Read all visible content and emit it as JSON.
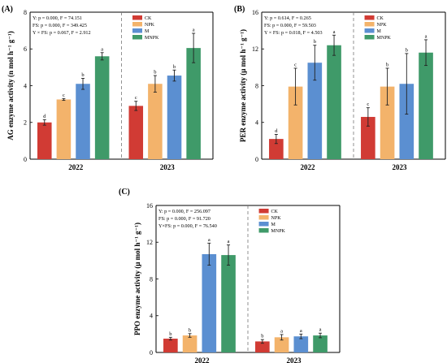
{
  "colors": {
    "CK": "#d13b34",
    "NPK": "#f3b36b",
    "M": "#5b8fd1",
    "MNPK": "#3f9a69"
  },
  "chart_data": [
    {
      "type": "bar",
      "panel": "(A)",
      "ylabel": "AG enzyme activity (n mol h⁻¹ g⁻¹)",
      "ylim": [
        0,
        8
      ],
      "yticks": [
        0,
        2,
        4,
        6,
        8
      ],
      "categories": [
        "2022",
        "2023"
      ],
      "legend": [
        "CK",
        "NPK",
        "M",
        "MNPK"
      ],
      "legend_position": "top-right",
      "stats": [
        "Y: p = 0.000, F = 74.151",
        "FS: p = 0.000, F = 349.425",
        "Y × FS: p = 0.067, F = 2.912"
      ],
      "series": [
        {
          "name": "CK",
          "values": [
            2.0,
            2.9
          ],
          "errors": [
            0.15,
            0.25
          ],
          "letters": [
            "d",
            "c"
          ]
        },
        {
          "name": "NPK",
          "values": [
            3.25,
            4.1
          ],
          "errors": [
            0.05,
            0.45
          ],
          "letters": [
            "c",
            "b"
          ]
        },
        {
          "name": "M",
          "values": [
            4.1,
            4.55
          ],
          "errors": [
            0.3,
            0.3
          ],
          "letters": [
            "b",
            "b"
          ]
        },
        {
          "name": "MNPK",
          "values": [
            5.6,
            6.05
          ],
          "errors": [
            0.2,
            0.8
          ],
          "letters": [
            "a",
            "a"
          ]
        }
      ]
    },
    {
      "type": "bar",
      "panel": "(B)",
      "ylabel": "PER enzyme activity (μ mol h⁻¹ g⁻¹)",
      "ylim": [
        0,
        16
      ],
      "yticks": [
        0,
        4,
        8,
        12,
        16
      ],
      "categories": [
        "2022",
        "2023"
      ],
      "legend": [
        "CK",
        "NPK",
        "M",
        "MNPK"
      ],
      "legend_position": "top-right",
      "stats": [
        "Y: p = 0.614, F = 0.265",
        "FS: p = 0.000, F = 59.503",
        "Y × FS: p = 0.018, F = 4.503"
      ],
      "series": [
        {
          "name": "CK",
          "values": [
            2.2,
            4.6
          ],
          "errors": [
            0.5,
            1.0
          ],
          "letters": [
            "d",
            "c"
          ]
        },
        {
          "name": "NPK",
          "values": [
            7.9,
            7.9
          ],
          "errors": [
            2.0,
            2.0
          ],
          "letters": [
            "c",
            "b"
          ]
        },
        {
          "name": "M",
          "values": [
            10.5,
            8.2
          ],
          "errors": [
            1.9,
            3.3
          ],
          "letters": [
            "b",
            "b"
          ]
        },
        {
          "name": "MNPK",
          "values": [
            12.4,
            11.6
          ],
          "errors": [
            1.1,
            1.4
          ],
          "letters": [
            "a",
            "a"
          ]
        }
      ]
    },
    {
      "type": "bar",
      "panel": "(C)",
      "ylabel": "PPO enzyme activity (μ mol h⁻¹ g⁻¹)",
      "ylim": [
        0,
        16
      ],
      "yticks": [
        0,
        4,
        8,
        12,
        16
      ],
      "categories": [
        "2022",
        "2023"
      ],
      "legend": [
        "CK",
        "NPK",
        "M",
        "MNPK"
      ],
      "legend_position": "top-right",
      "stats": [
        "Y: p = 0.000, F = 256.097",
        "FS: p = 0.000, F = 91.720",
        "Y×FS: p = 0.000, F = 76.540"
      ],
      "series": [
        {
          "name": "CK",
          "values": [
            1.5,
            1.2
          ],
          "errors": [
            0.15,
            0.2
          ],
          "letters": [
            "b",
            "b"
          ]
        },
        {
          "name": "NPK",
          "values": [
            1.85,
            1.65
          ],
          "errors": [
            0.2,
            0.3
          ],
          "letters": [
            "b",
            "a"
          ]
        },
        {
          "name": "M",
          "values": [
            10.7,
            1.75
          ],
          "errors": [
            1.2,
            0.25
          ],
          "letters": [
            "a",
            "a"
          ]
        },
        {
          "name": "MNPK",
          "values": [
            10.6,
            1.85
          ],
          "errors": [
            1.1,
            0.25
          ],
          "letters": [
            "a",
            "a"
          ]
        }
      ]
    }
  ]
}
